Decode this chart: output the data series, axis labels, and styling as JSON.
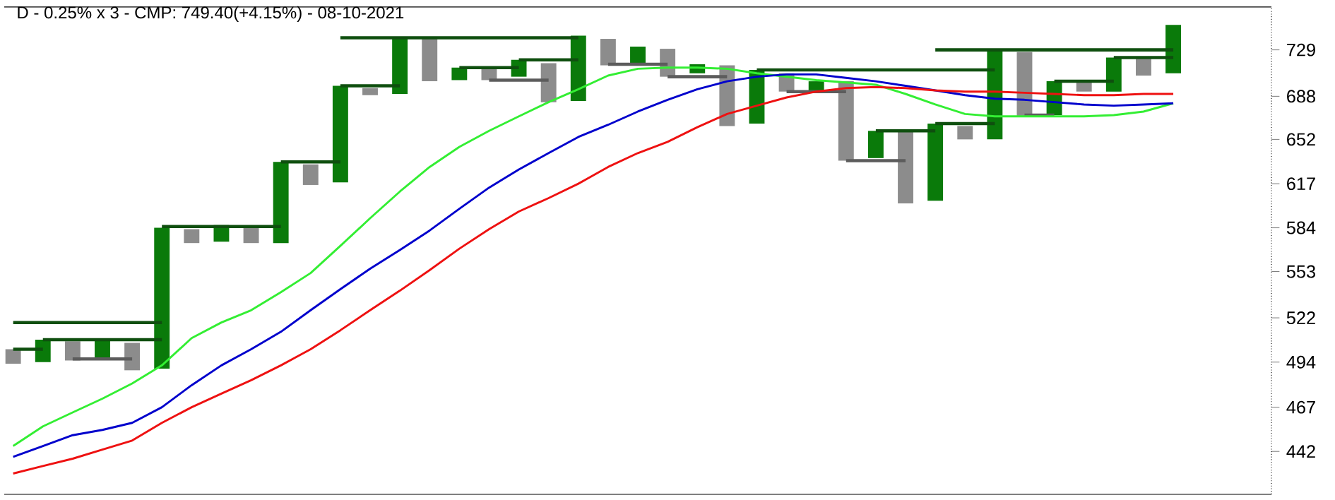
{
  "chart_data": {
    "type": "bar",
    "title": "D - 0.25% x 3 - CMP: 749.40(+4.15%) - 08-10-2021",
    "categories": [
      null,
      null,
      null,
      null,
      null,
      null,
      null,
      null,
      null,
      null,
      null,
      null,
      null,
      null,
      null,
      null,
      null,
      null,
      null,
      null,
      null,
      null,
      null,
      null,
      null,
      null,
      null,
      null,
      null,
      null,
      null,
      null,
      null,
      null,
      null,
      null,
      null,
      null,
      null,
      null
    ],
    "ylim": [
      419,
      769
    ],
    "log": "y",
    "yticks": [
      442,
      467,
      494,
      522,
      553,
      584,
      617,
      652,
      688,
      729
    ],
    "tick_labels": "y",
    "series": [
      {
        "base": [
          493,
          494,
          495,
          496,
          489,
          490,
          573,
          574,
          573,
          573,
          616,
          618,
          689,
          690,
          701,
          702,
          702,
          705,
          683,
          684,
          715,
          717,
          705,
          708,
          663,
          665,
          692,
          692,
          635,
          637,
          602,
          604,
          652,
          652,
          671,
          672,
          692,
          692,
          706,
          708
        ],
        "values": [
          9,
          14,
          12,
          12,
          17,
          94,
          10,
          12,
          11,
          61,
          16,
          79,
          6,
          50,
          38,
          11,
          10,
          15,
          34,
          58,
          24,
          15,
          25,
          8,
          52,
          46,
          16,
          9,
          66,
          22,
          56,
          61,
          11,
          78,
          56,
          29,
          9,
          30,
          15,
          44
        ],
        "colors": [
          "#8c8c8c",
          "#0a7a0a",
          "#8c8c8c",
          "#0a7a0a",
          "#8c8c8c",
          "#0a7a0a",
          "#8c8c8c",
          "#0a7a0a",
          "#8c8c8c",
          "#0a7a0a",
          "#8c8c8c",
          "#0a7a0a",
          "#8c8c8c",
          "#0a7a0a",
          "#8c8c8c",
          "#0a7a0a",
          "#8c8c8c",
          "#0a7a0a",
          "#8c8c8c",
          "#0a7a0a",
          "#8c8c8c",
          "#0a7a0a",
          "#8c8c8c",
          "#0a7a0a",
          "#8c8c8c",
          "#0a7a0a",
          "#8c8c8c",
          "#0a7a0a",
          "#8c8c8c",
          "#0a7a0a",
          "#8c8c8c",
          "#0a7a0a",
          "#8c8c8c",
          "#0a7a0a",
          "#8c8c8c",
          "#0a7a0a",
          "#8c8c8c",
          "#0a7a0a",
          "#8c8c8c",
          "#0a7a0a"
        ]
      },
      {
        "type": "line",
        "color": "#0f4f0f",
        "values": [
          502,
          502,
          null,
          null,
          null,
          null,
          null,
          null,
          null,
          null,
          null,
          null,
          null,
          null,
          null,
          null,
          null,
          null,
          null,
          null,
          null,
          null,
          null,
          null,
          null,
          null,
          null,
          null,
          null,
          null,
          null,
          null,
          null,
          null,
          null,
          null,
          null,
          null,
          null,
          null
        ]
      },
      {
        "type": "line",
        "color": "#0f4f0f",
        "values": [
          null,
          508,
          508,
          508,
          508,
          508,
          null,
          null,
          null,
          null,
          null,
          null,
          null,
          null,
          null,
          null,
          null,
          null,
          null,
          null,
          null,
          null,
          null,
          null,
          null,
          null,
          null,
          null,
          null,
          null,
          null,
          null,
          null,
          null,
          null,
          null,
          null,
          null,
          null,
          null
        ]
      },
      {
        "type": "line",
        "color": "#5c5c5c",
        "values": [
          null,
          null,
          496,
          496,
          496,
          null,
          null,
          null,
          null,
          null,
          null,
          null,
          null,
          null,
          null,
          null,
          null,
          null,
          null,
          null,
          null,
          null,
          null,
          null,
          null,
          null,
          null,
          null,
          null,
          null,
          null,
          null,
          null,
          null,
          null,
          null,
          null,
          null,
          null,
          null
        ]
      },
      {
        "type": "line",
        "color": "#0f4f0f",
        "values": [
          519,
          519,
          519,
          519,
          519,
          519,
          null,
          null,
          null,
          null,
          null,
          null,
          null,
          null,
          null,
          null,
          null,
          null,
          null,
          null,
          null,
          null,
          null,
          null,
          null,
          null,
          null,
          null,
          null,
          null,
          null,
          null,
          null,
          null,
          null,
          null,
          null,
          null,
          null,
          null
        ]
      },
      {
        "type": "line",
        "color": "#0f4f0f",
        "values": [
          null,
          null,
          null,
          null,
          null,
          585,
          585,
          585,
          585,
          585,
          null,
          null,
          null,
          null,
          null,
          null,
          null,
          null,
          null,
          null,
          null,
          null,
          null,
          null,
          null,
          null,
          null,
          null,
          null,
          null,
          null,
          null,
          null,
          null,
          null,
          null,
          null,
          null,
          null,
          null
        ]
      },
      {
        "type": "line",
        "color": "#0f4f0f",
        "values": [
          null,
          null,
          null,
          null,
          null,
          null,
          null,
          null,
          null,
          634,
          634,
          634,
          null,
          null,
          null,
          null,
          null,
          null,
          null,
          null,
          null,
          null,
          null,
          null,
          null,
          null,
          null,
          null,
          null,
          null,
          null,
          null,
          null,
          null,
          null,
          null,
          null,
          null,
          null,
          null
        ]
      },
      {
        "type": "line",
        "color": "#0f4f0f",
        "values": [
          null,
          null,
          null,
          null,
          null,
          null,
          null,
          null,
          null,
          null,
          null,
          697,
          697,
          697,
          null,
          null,
          null,
          null,
          null,
          null,
          null,
          null,
          null,
          null,
          null,
          null,
          null,
          null,
          null,
          null,
          null,
          null,
          null,
          null,
          null,
          null,
          null,
          null,
          null,
          null
        ]
      },
      {
        "type": "line",
        "color": "#0f4f0f",
        "values": [
          null,
          null,
          null,
          null,
          null,
          null,
          null,
          null,
          null,
          null,
          null,
          740,
          740,
          740,
          740,
          740,
          740,
          740,
          740,
          740,
          null,
          null,
          null,
          null,
          null,
          null,
          null,
          null,
          null,
          null,
          null,
          null,
          null,
          null,
          null,
          null,
          null,
          null,
          null,
          null
        ]
      },
      {
        "type": "line",
        "color": "#0f4f0f",
        "values": [
          null,
          null,
          null,
          null,
          null,
          null,
          null,
          null,
          null,
          null,
          null,
          null,
          null,
          null,
          null,
          713,
          713,
          713,
          null,
          null,
          null,
          null,
          null,
          null,
          null,
          null,
          null,
          null,
          null,
          null,
          null,
          null,
          null,
          null,
          null,
          null,
          null,
          null,
          null,
          null
        ]
      },
      {
        "type": "line",
        "color": "#0f4f0f",
        "values": [
          null,
          null,
          null,
          null,
          null,
          null,
          null,
          null,
          null,
          null,
          null,
          null,
          null,
          null,
          null,
          null,
          null,
          720,
          720,
          720,
          null,
          null,
          null,
          null,
          null,
          null,
          null,
          null,
          null,
          null,
          null,
          null,
          null,
          null,
          null,
          null,
          null,
          null,
          null,
          null
        ]
      },
      {
        "type": "line",
        "color": "#5c5c5c",
        "values": [
          null,
          null,
          null,
          null,
          null,
          null,
          null,
          null,
          null,
          null,
          null,
          null,
          null,
          null,
          null,
          null,
          702,
          702,
          702,
          null,
          null,
          null,
          null,
          null,
          null,
          null,
          null,
          null,
          null,
          null,
          null,
          null,
          null,
          null,
          null,
          null,
          null,
          null,
          null,
          null
        ]
      },
      {
        "type": "line",
        "color": "#5c5c5c",
        "values": [
          null,
          null,
          null,
          null,
          null,
          null,
          null,
          null,
          null,
          null,
          null,
          null,
          null,
          null,
          null,
          null,
          null,
          null,
          null,
          null,
          716,
          716,
          716,
          null,
          null,
          null,
          null,
          null,
          null,
          null,
          null,
          null,
          null,
          null,
          null,
          null,
          null,
          null,
          null,
          null
        ]
      },
      {
        "type": "line",
        "color": "#5c5c5c",
        "values": [
          null,
          null,
          null,
          null,
          null,
          null,
          null,
          null,
          null,
          null,
          null,
          null,
          null,
          null,
          null,
          null,
          null,
          null,
          null,
          null,
          null,
          null,
          705,
          705,
          705,
          null,
          null,
          null,
          null,
          null,
          null,
          null,
          null,
          null,
          null,
          null,
          null,
          null,
          null,
          null
        ]
      },
      {
        "type": "line",
        "color": "#0f4f0f",
        "values": [
          null,
          null,
          null,
          null,
          null,
          null,
          null,
          null,
          null,
          null,
          null,
          null,
          null,
          null,
          null,
          null,
          null,
          null,
          null,
          null,
          null,
          null,
          null,
          null,
          null,
          711,
          711,
          711,
          711,
          711,
          711,
          711,
          711,
          711,
          null,
          null,
          null,
          null,
          null,
          null
        ]
      },
      {
        "type": "line",
        "color": "#5c5c5c",
        "values": [
          null,
          null,
          null,
          null,
          null,
          null,
          null,
          null,
          null,
          null,
          null,
          null,
          null,
          null,
          null,
          null,
          null,
          null,
          null,
          null,
          null,
          null,
          null,
          null,
          null,
          null,
          692,
          692,
          692,
          null,
          null,
          null,
          null,
          null,
          null,
          null,
          null,
          null,
          null,
          null
        ]
      },
      {
        "type": "line",
        "color": "#5c5c5c",
        "values": [
          null,
          null,
          null,
          null,
          null,
          null,
          null,
          null,
          null,
          null,
          null,
          null,
          null,
          null,
          null,
          null,
          null,
          null,
          null,
          null,
          null,
          null,
          null,
          null,
          null,
          null,
          null,
          null,
          635,
          635,
          635,
          null,
          null,
          null,
          null,
          null,
          null,
          null,
          null,
          null
        ]
      },
      {
        "type": "line",
        "color": "#0f4f0f",
        "values": [
          null,
          null,
          null,
          null,
          null,
          null,
          null,
          null,
          null,
          null,
          null,
          null,
          null,
          null,
          null,
          null,
          null,
          null,
          null,
          null,
          null,
          null,
          null,
          null,
          null,
          null,
          null,
          null,
          null,
          659,
          659,
          659,
          null,
          null,
          null,
          null,
          null,
          null,
          null,
          null
        ]
      },
      {
        "type": "line",
        "color": "#0f4f0f",
        "values": [
          null,
          null,
          null,
          null,
          null,
          null,
          null,
          null,
          null,
          null,
          null,
          null,
          null,
          null,
          null,
          null,
          null,
          null,
          null,
          null,
          null,
          null,
          null,
          null,
          null,
          null,
          null,
          null,
          null,
          null,
          null,
          665,
          665,
          665,
          null,
          null,
          null,
          null,
          null,
          null
        ]
      },
      {
        "type": "line",
        "color": "#0f4f0f",
        "values": [
          null,
          null,
          null,
          null,
          null,
          null,
          null,
          null,
          null,
          null,
          null,
          null,
          null,
          null,
          null,
          null,
          null,
          null,
          null,
          null,
          null,
          null,
          null,
          null,
          null,
          null,
          null,
          null,
          null,
          null,
          null,
          729,
          729,
          729,
          729,
          729,
          729,
          729,
          729,
          729
        ]
      },
      {
        "type": "line",
        "color": "#5c5c5c",
        "values": [
          null,
          null,
          null,
          null,
          null,
          null,
          null,
          null,
          null,
          null,
          null,
          null,
          null,
          null,
          null,
          null,
          null,
          null,
          null,
          null,
          null,
          null,
          null,
          null,
          null,
          null,
          null,
          null,
          null,
          null,
          null,
          null,
          null,
          null,
          672,
          672,
          null,
          null,
          null,
          null
        ]
      },
      {
        "type": "line",
        "color": "#0f4f0f",
        "values": [
          null,
          null,
          null,
          null,
          null,
          null,
          null,
          null,
          null,
          null,
          null,
          null,
          null,
          null,
          null,
          null,
          null,
          null,
          null,
          null,
          null,
          null,
          null,
          null,
          null,
          null,
          null,
          null,
          null,
          null,
          null,
          null,
          null,
          null,
          null,
          701,
          701,
          701,
          null,
          null
        ]
      },
      {
        "type": "line",
        "color": "#0f4f0f",
        "values": [
          null,
          null,
          null,
          null,
          null,
          null,
          null,
          null,
          null,
          null,
          null,
          null,
          null,
          null,
          null,
          null,
          null,
          null,
          null,
          null,
          null,
          null,
          null,
          null,
          null,
          null,
          null,
          null,
          null,
          null,
          null,
          null,
          null,
          null,
          null,
          null,
          null,
          722,
          722,
          722
        ]
      },
      {
        "type": "line",
        "color": "#33ee33",
        "values": [
          445,
          456,
          464,
          472,
          481,
          492,
          509,
          519,
          527,
          539,
          552,
          571,
          591,
          611,
          630,
          646,
          659,
          671,
          683,
          694,
          706,
          712,
          713,
          713,
          712,
          708,
          705,
          702,
          700,
          698,
          690,
          681,
          673,
          671,
          671,
          671,
          671,
          672,
          675,
          682
        ]
      },
      {
        "type": "line",
        "color": "#0000cc",
        "values": [
          439,
          445,
          451,
          454,
          458,
          467,
          480,
          492,
          502,
          513,
          527,
          541,
          555,
          568,
          582,
          598,
          614,
          628,
          641,
          654,
          664,
          675,
          685,
          694,
          701,
          705,
          707,
          707,
          704,
          701,
          697,
          693,
          689,
          686,
          685,
          683,
          681,
          680,
          681,
          682
        ]
      },
      {
        "type": "line",
        "color": "#ee1111",
        "values": [
          430,
          434,
          438,
          443,
          448,
          458,
          467,
          475,
          483,
          492,
          502,
          514,
          527,
          540,
          554,
          569,
          583,
          596,
          606,
          617,
          630,
          641,
          650,
          662,
          673,
          680,
          687,
          692,
          695,
          696,
          695,
          693,
          692,
          692,
          691,
          690,
          689,
          689,
          690,
          690
        ]
      }
    ]
  }
}
